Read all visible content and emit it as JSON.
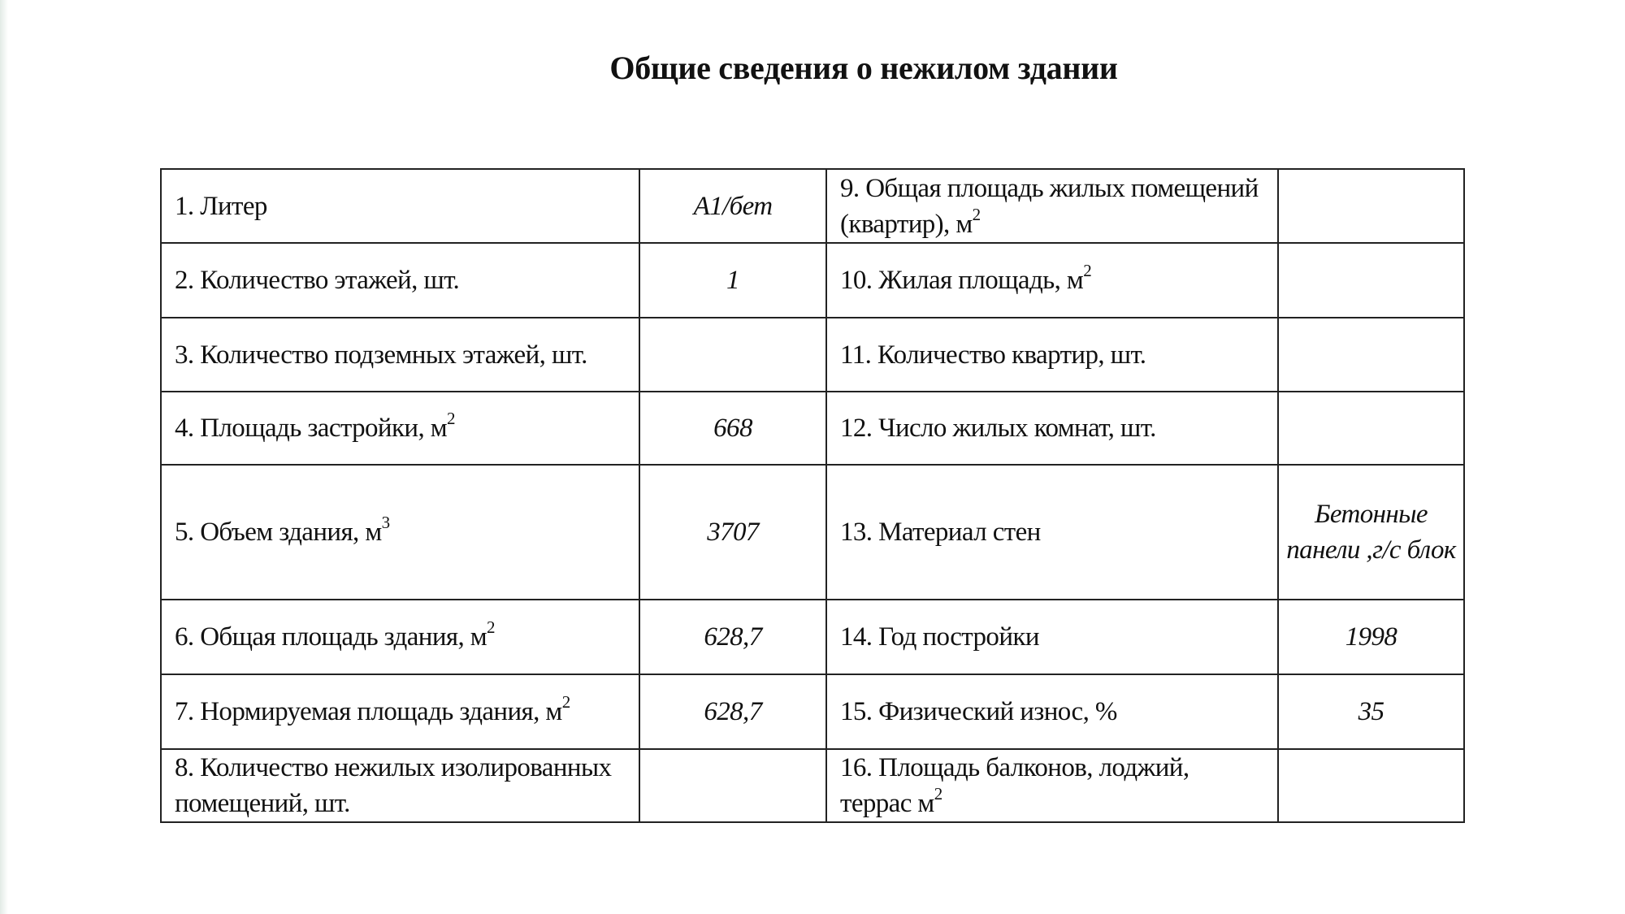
{
  "title": "Общие сведения о нежилом здании",
  "rows": [
    {
      "l_label": "1. Литер",
      "l_sup": "",
      "l_value": "А1/бет",
      "r_label": "9. Общая площадь жилых помещений (квартир), м",
      "r_sup": "2",
      "r_value": ""
    },
    {
      "l_label": "2. Количество этажей, шт.",
      "l_sup": "",
      "l_value": "1",
      "r_label": "10. Жилая площадь, м",
      "r_sup": "2",
      "r_value": ""
    },
    {
      "l_label": "3. Количество подземных этажей, шт.",
      "l_sup": "",
      "l_value": "",
      "r_label": "11. Количество квартир, шт.",
      "r_sup": "",
      "r_value": ""
    },
    {
      "l_label": "4. Площадь застройки, м",
      "l_sup": "2",
      "l_value": "668",
      "r_label": "12. Число жилых комнат, шт.",
      "r_sup": "",
      "r_value": ""
    },
    {
      "l_label": "5. Объем здания, м",
      "l_sup": "3",
      "l_value": "3707",
      "r_label": "13. Материал стен",
      "r_sup": "",
      "r_value": "Бетонные панели ,г/с блок"
    },
    {
      "l_label": "6. Общая площадь здания, м",
      "l_sup": "2",
      "l_value": "628,7",
      "r_label": "14. Год постройки",
      "r_sup": "",
      "r_value": "1998"
    },
    {
      "l_label": "7. Нормируемая площадь здания, м",
      "l_sup": "2",
      "l_value": "628,7",
      "r_label": "15. Физический износ, %",
      "r_sup": "",
      "r_value": "35"
    },
    {
      "l_label": "8. Количество нежилых изолированных помещений, шт.",
      "l_sup": "",
      "l_value": "",
      "r_label": "16. Площадь балконов, лоджий, террас м",
      "r_sup": "2",
      "r_value": ""
    }
  ]
}
